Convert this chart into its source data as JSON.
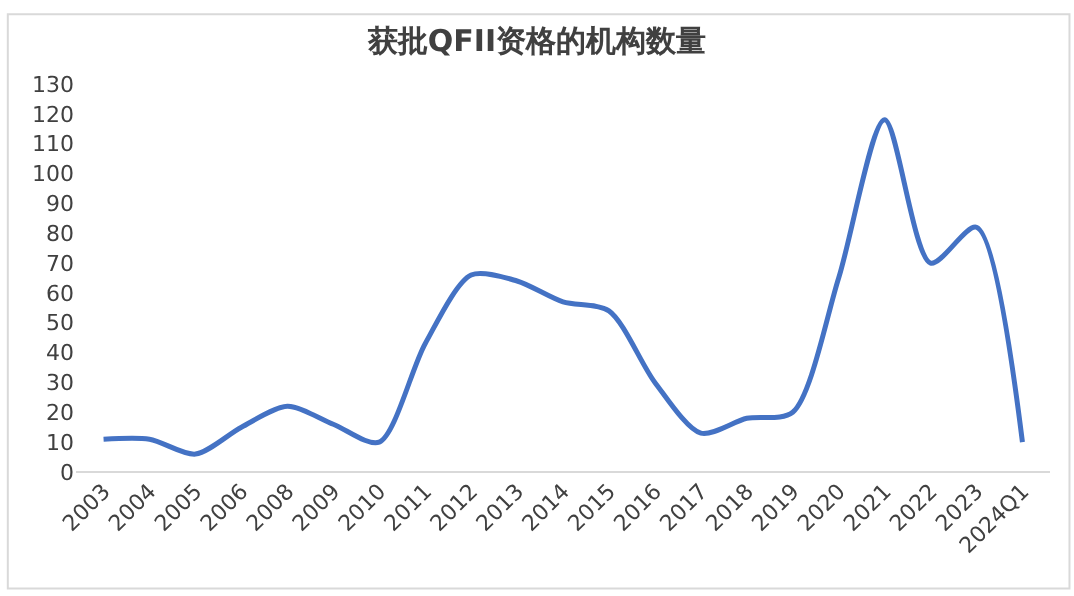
{
  "chart_data": {
    "type": "line",
    "title": "获批QFII资格的机构数量",
    "categories": [
      "2003",
      "2004",
      "2005",
      "2006",
      "2008",
      "2009",
      "2010",
      "2011",
      "2012",
      "2013",
      "2014",
      "2015",
      "2016",
      "2017",
      "2018",
      "2019",
      "2020",
      "2021",
      "2022",
      "2023",
      "2024Q1"
    ],
    "series": [
      {
        "color": "#4472c4",
        "values": [
          11,
          11,
          6,
          15,
          22,
          16,
          10,
          43,
          66,
          64,
          57,
          54,
          30,
          13,
          18,
          20,
          65,
          118,
          70,
          82,
          10
        ]
      }
    ],
    "ylim": [
      0,
      130
    ],
    "yticks": [
      0,
      10,
      20,
      30,
      40,
      50,
      60,
      70,
      80,
      90,
      100,
      110,
      120,
      130
    ],
    "marker": "none",
    "line_style": "solid"
  }
}
